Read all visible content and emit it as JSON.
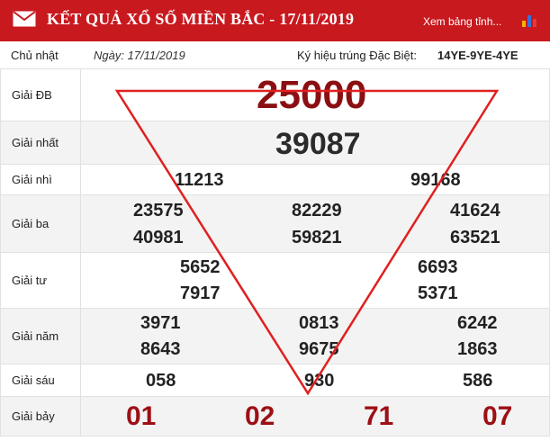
{
  "header": {
    "title": "KẾT QUẢ XỔ SỐ MIỀN BẮC - 17/11/2019",
    "view_link": "Xem bảng tỉnh...",
    "accent_color": "#c8191f",
    "icons": [
      "envelope-icon",
      "bar-chart-icon"
    ]
  },
  "info": {
    "day": "Chủ nhật",
    "date": "Ngày: 17/11/2019",
    "symbol_label": "Ký hiệu trúng Đặc Biệt:",
    "symbol_value": "14YE-9YE-4YE"
  },
  "prizes": {
    "db": {
      "label": "Giải ĐB",
      "values": [
        "25000"
      ]
    },
    "p1": {
      "label": "Giải nhất",
      "values": [
        "39087"
      ]
    },
    "p2": {
      "label": "Giải nhì",
      "values": [
        "11213",
        "99168"
      ]
    },
    "p3": {
      "label": "Giải ba",
      "values": [
        "23575",
        "82229",
        "41624",
        "40981",
        "59821",
        "63521"
      ]
    },
    "p4": {
      "label": "Giải tư",
      "values": [
        "5652",
        "6693",
        "7917",
        "5371"
      ]
    },
    "p5": {
      "label": "Giải năm",
      "values": [
        "3971",
        "0813",
        "6242",
        "8643",
        "9675",
        "1863"
      ]
    },
    "p6": {
      "label": "Giải sáu",
      "values": [
        "058",
        "930",
        "586"
      ]
    },
    "p7": {
      "label": "Giải bảy",
      "values": [
        "01",
        "02",
        "71",
        "07"
      ]
    }
  },
  "overlay": {
    "shape": "inverted-triangle",
    "color": "#e02020"
  }
}
